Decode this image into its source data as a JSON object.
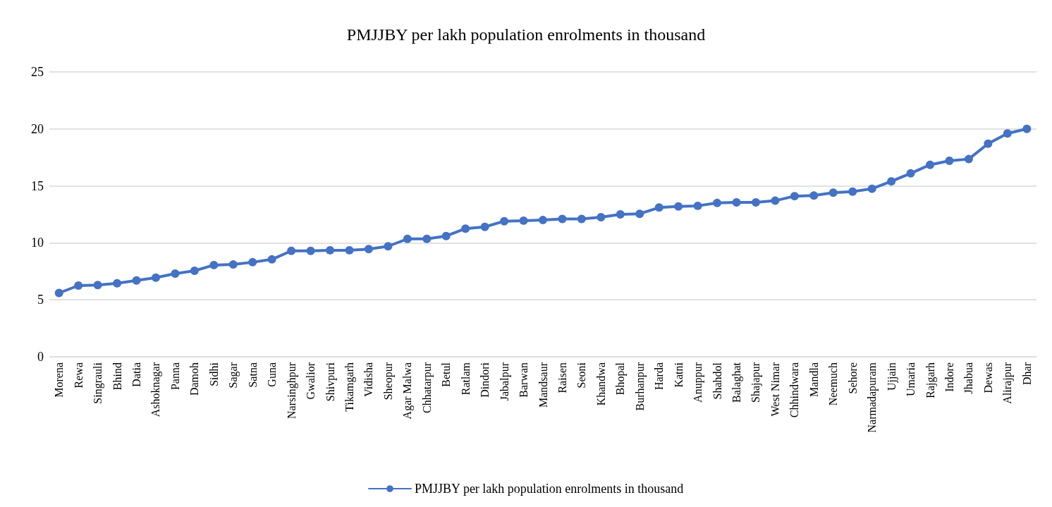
{
  "chart_data": {
    "type": "line",
    "title": "PMJJBY per lakh population enrolments in thousand",
    "categories": [
      "Morena",
      "Rewa",
      "Singrauli",
      "Bhind",
      "Datia",
      "Ashoknagar",
      "Panna",
      "Damoh",
      "Sidhi",
      "Sagar",
      "Satna",
      "Guna",
      "Narsinghpur",
      "Gwalior",
      "Shivpuri",
      "Tikamgarh",
      "Vidisha",
      "Sheopur",
      "Agar Malwa",
      "Chhatarpur",
      "Betul",
      "Ratlam",
      "Dindori",
      "Jabalpur",
      "Barwan",
      "Mandsaur",
      "Raisen",
      "Seoni",
      "Khandwa",
      "Bhopal",
      "Burhanpur",
      "Harda",
      "Katni",
      "Anuppur",
      "Shahdol",
      "Balaghat",
      "Shajapur",
      "West Nimar",
      "Chhindwara",
      "Mandla",
      "Neemuch",
      "Sehore",
      "Narmadapuram",
      "Ujjain",
      "Umaria",
      "Rajgarh",
      "Indore",
      "Jhabua",
      "Dewas",
      "Alirajpur",
      "Dhar"
    ],
    "series": [
      {
        "name": "PMJJBY per lakh population enrolments in thousand",
        "color": "#4472c4",
        "values": [
          5.6,
          6.25,
          6.3,
          6.45,
          6.7,
          6.95,
          7.3,
          7.55,
          8.05,
          8.1,
          8.3,
          8.55,
          9.3,
          9.3,
          9.35,
          9.35,
          9.45,
          9.7,
          10.35,
          10.35,
          10.6,
          11.25,
          11.4,
          11.9,
          11.95,
          12.0,
          12.1,
          12.1,
          12.25,
          12.5,
          12.55,
          13.1,
          13.2,
          13.25,
          13.5,
          13.55,
          13.55,
          13.7,
          14.1,
          14.15,
          14.4,
          14.5,
          14.75,
          15.4,
          16.1,
          16.85,
          17.2,
          17.35,
          18.7,
          19.6,
          20.0
        ]
      }
    ],
    "ylim": [
      0,
      25
    ],
    "yticks": [
      0,
      5,
      10,
      15,
      20,
      25
    ],
    "grid": "y",
    "legend": "bottom",
    "marker": "circle",
    "line_style": "solid"
  }
}
